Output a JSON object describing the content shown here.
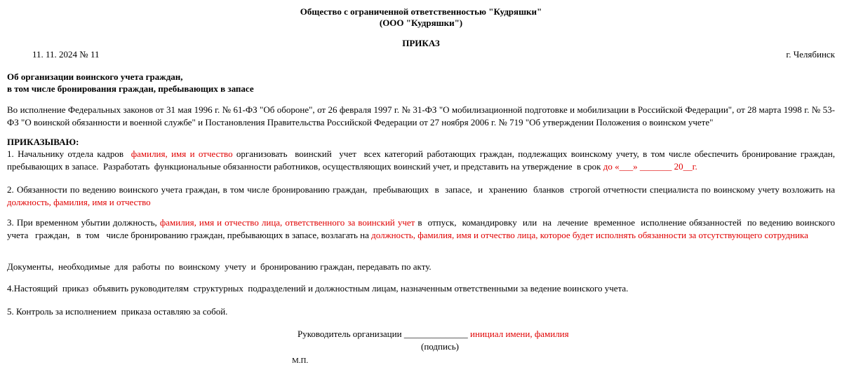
{
  "header": {
    "org": "Общество с ограниченной ответственностью \"Кудряшки\"",
    "short": "(ООО \"Кудряшки\")",
    "title": "ПРИКАЗ",
    "date_number": "11. 11. 2024 № 11",
    "city": "г. Челябинск"
  },
  "subject": [
    "Об организации воинского учета граждан,",
    "в том числе бронирования граждан, пребывающих в запасе"
  ],
  "preamble": "Во исполнение Федеральных законов от 31 мая 1996 г. № 61-ФЗ \"Об обороне\", от 26 февраля 1997 г. № 31-ФЗ \"О мобилизационной подготовке и мобилизации в Российской Федерации\", от 28 марта 1998 г. № 53-ФЗ \"О воинской обязанности и военной службе\"  и Постановления Правительства Российской Федерации от 27 ноября 2006 г. № 719 \"Об утверждении Положения о воинском учете\"",
  "order_heading": "ПРИКАЗЫВАЮ:",
  "paragraphs": [
    {
      "parts": [
        {
          "text": "1. Начальнику отдела кадров  "
        },
        {
          "text": "фамилия, имя и отчество",
          "color": "#e00000"
        },
        {
          "text": " организовать  воинский  учет  всех категорий работающих граждан, подлежащих воинскому учету, в том числе обеспечить бронирование граждан, пребывающих в запасе.  Разработать  функциональные обязанности работников, осуществляющих воинский учет, и представить на утверждение  в срок "
        },
        {
          "text": "до «___» _______ 20__г.",
          "color": "#e00000"
        }
      ]
    },
    {
      "parts": [
        {
          "text": "2. Обязанности по ведению воинского учета граждан, в том числе бронированию граждан,  пребывающих  в  запасе,  и  хранению  бланков  строгой отчетности специалиста по воинскому учету возложить на "
        },
        {
          "text": "должность, фамилия, имя и отчество",
          "color": "#e00000"
        }
      ]
    },
    {
      "parts": [
        {
          "text": "3. При временном убытии должность, "
        },
        {
          "text": "фамилия, имя и отчество лица, ответственного за воинский учет",
          "color": "#e00000"
        },
        {
          "text": " в  отпуск,  командировку  или  на  лечение  временное  исполнение обязанностей  по ведению воинского  учета   граждан,   в  том   числе бронированию граждан, пребывающих в запасе, возлагать на "
        },
        {
          "text": "должность, фамилия, имя и отчество лица, которое будет исполнять обязанности за отсутствующего сотрудника",
          "color": "#e00000"
        }
      ]
    },
    {
      "parts": [
        {
          "text": "Документы,  необходимые  для  работы  по  воинскому  учету  и  бронированию граждан, передавать по акту."
        }
      ]
    },
    {
      "parts": [
        {
          "text": "4.Настоящий  приказ  объявить руководителям  структурных  подразделений и должностным лицам, назначенным ответственными за ведение воинского учета."
        }
      ]
    },
    {
      "parts": [
        {
          "text": "5. Контроль за исполнением  приказа оставляю за собой."
        }
      ]
    }
  ],
  "signature": {
    "role": "Руководитель организации ______________ ",
    "name": "инициал имени, фамилия",
    "name_color": "#e00000",
    "caption": "(подпись)",
    "stamp": "М.П."
  }
}
